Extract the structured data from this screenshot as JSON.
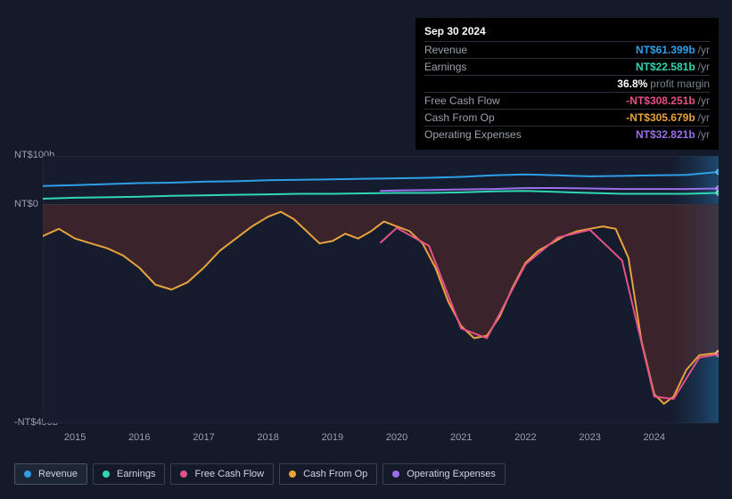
{
  "tooltip": {
    "date": "Sep 30 2024",
    "rows": [
      {
        "label": "Revenue",
        "value": "NT$61.399b",
        "unit": "/yr",
        "color": "#2e9fe6"
      },
      {
        "label": "Earnings",
        "value": "NT$22.581b",
        "unit": "/yr",
        "color": "#31d6b2"
      },
      {
        "label": "",
        "value": "36.8%",
        "unit": "profit margin",
        "color": "#ffffff"
      },
      {
        "label": "Free Cash Flow",
        "value": "-NT$308.251b",
        "unit": "/yr",
        "color": "#e6518a"
      },
      {
        "label": "Cash From Op",
        "value": "-NT$305.679b",
        "unit": "/yr",
        "color": "#e8a33d"
      },
      {
        "label": "Operating Expenses",
        "value": "NT$32.821b",
        "unit": "/yr",
        "color": "#9b6ee8"
      }
    ]
  },
  "chart": {
    "type": "line-area",
    "background_color": "#131a2a",
    "plot_background": "#151c2e",
    "grid_color": "#2a3142",
    "future_band_color": "#1a2540",
    "y_axis": {
      "min": -450,
      "max": 100,
      "zero": 0,
      "ticks": [
        {
          "v": 100,
          "label": "NT$100b"
        },
        {
          "v": 0,
          "label": "NT$0"
        },
        {
          "v": -450,
          "label": "-NT$450b"
        }
      ],
      "label_color": "#9aa0ac",
      "label_fontsize": 11
    },
    "x_axis": {
      "min": 2014.5,
      "max": 2025.0,
      "ticks": [
        2015,
        2016,
        2017,
        2018,
        2019,
        2020,
        2021,
        2022,
        2023,
        2024
      ],
      "label_color": "#9aa0ac",
      "label_fontsize": 11
    },
    "future_start": 2024.3,
    "series": [
      {
        "name": "Revenue",
        "color": "#2e9fe6",
        "line_width": 2,
        "has_fill": false,
        "points": [
          [
            2014.5,
            38
          ],
          [
            2015,
            40
          ],
          [
            2015.5,
            42
          ],
          [
            2016,
            44
          ],
          [
            2016.5,
            45
          ],
          [
            2017,
            47
          ],
          [
            2017.5,
            48
          ],
          [
            2018,
            50
          ],
          [
            2018.5,
            51
          ],
          [
            2019,
            52
          ],
          [
            2019.5,
            53
          ],
          [
            2020,
            54
          ],
          [
            2020.5,
            55
          ],
          [
            2021,
            57
          ],
          [
            2021.5,
            60
          ],
          [
            2022,
            62
          ],
          [
            2022.5,
            60
          ],
          [
            2023,
            58
          ],
          [
            2023.5,
            59
          ],
          [
            2024,
            60
          ],
          [
            2024.5,
            61
          ],
          [
            2025,
            67
          ]
        ]
      },
      {
        "name": "Earnings",
        "color": "#31d6b2",
        "line_width": 2,
        "has_fill": false,
        "points": [
          [
            2014.5,
            12
          ],
          [
            2015,
            14
          ],
          [
            2015.5,
            15
          ],
          [
            2016,
            16
          ],
          [
            2016.5,
            18
          ],
          [
            2017,
            19
          ],
          [
            2017.5,
            20
          ],
          [
            2018,
            21
          ],
          [
            2018.5,
            22
          ],
          [
            2019,
            22
          ],
          [
            2019.5,
            23
          ],
          [
            2020,
            24
          ],
          [
            2020.5,
            24
          ],
          [
            2021,
            25
          ],
          [
            2021.5,
            27
          ],
          [
            2022,
            28
          ],
          [
            2022.5,
            26
          ],
          [
            2023,
            24
          ],
          [
            2023.5,
            22
          ],
          [
            2024,
            22
          ],
          [
            2024.5,
            22
          ],
          [
            2025,
            24
          ]
        ]
      },
      {
        "name": "Operating Expenses",
        "color": "#9b6ee8",
        "line_width": 2,
        "has_fill": false,
        "points": [
          [
            2019.75,
            28
          ],
          [
            2020,
            29
          ],
          [
            2020.5,
            30
          ],
          [
            2021,
            31
          ],
          [
            2021.5,
            32
          ],
          [
            2022,
            34
          ],
          [
            2022.5,
            34
          ],
          [
            2023,
            33
          ],
          [
            2023.5,
            32
          ],
          [
            2024,
            32
          ],
          [
            2024.5,
            32
          ],
          [
            2025,
            33
          ]
        ]
      },
      {
        "name": "Cash From Op",
        "color": "#e8a33d",
        "line_width": 2,
        "has_fill": true,
        "fill_color": "#5a2a2a",
        "fill_opacity": 0.55,
        "points": [
          [
            2014.5,
            -65
          ],
          [
            2014.75,
            -50
          ],
          [
            2015,
            -70
          ],
          [
            2015.25,
            -80
          ],
          [
            2015.5,
            -90
          ],
          [
            2015.75,
            -105
          ],
          [
            2016,
            -130
          ],
          [
            2016.25,
            -165
          ],
          [
            2016.5,
            -175
          ],
          [
            2016.75,
            -160
          ],
          [
            2017,
            -130
          ],
          [
            2017.25,
            -95
          ],
          [
            2017.5,
            -70
          ],
          [
            2017.75,
            -45
          ],
          [
            2018,
            -25
          ],
          [
            2018.2,
            -15
          ],
          [
            2018.4,
            -30
          ],
          [
            2018.6,
            -55
          ],
          [
            2018.8,
            -80
          ],
          [
            2019,
            -75
          ],
          [
            2019.2,
            -60
          ],
          [
            2019.4,
            -70
          ],
          [
            2019.6,
            -55
          ],
          [
            2019.8,
            -35
          ],
          [
            2020,
            -45
          ],
          [
            2020.2,
            -55
          ],
          [
            2020.4,
            -80
          ],
          [
            2020.6,
            -130
          ],
          [
            2020.8,
            -200
          ],
          [
            2021,
            -250
          ],
          [
            2021.2,
            -275
          ],
          [
            2021.4,
            -270
          ],
          [
            2021.6,
            -230
          ],
          [
            2021.8,
            -170
          ],
          [
            2022,
            -120
          ],
          [
            2022.2,
            -95
          ],
          [
            2022.4,
            -80
          ],
          [
            2022.6,
            -65
          ],
          [
            2022.8,
            -55
          ],
          [
            2023,
            -50
          ],
          [
            2023.2,
            -45
          ],
          [
            2023.4,
            -50
          ],
          [
            2023.6,
            -110
          ],
          [
            2023.8,
            -280
          ],
          [
            2024,
            -390
          ],
          [
            2024.15,
            -410
          ],
          [
            2024.3,
            -395
          ],
          [
            2024.5,
            -340
          ],
          [
            2024.7,
            -310
          ],
          [
            2025,
            -305
          ]
        ]
      },
      {
        "name": "Free Cash Flow",
        "color": "#e6518a",
        "line_width": 2,
        "has_fill": false,
        "points": [
          [
            2019.75,
            -78
          ],
          [
            2020,
            -48
          ],
          [
            2020.5,
            -85
          ],
          [
            2021,
            -255
          ],
          [
            2021.4,
            -275
          ],
          [
            2022,
            -123
          ],
          [
            2022.5,
            -68
          ],
          [
            2023,
            -52
          ],
          [
            2023.5,
            -115
          ],
          [
            2024,
            -395
          ],
          [
            2024.3,
            -400
          ],
          [
            2024.7,
            -315
          ],
          [
            2025,
            -308
          ]
        ]
      }
    ]
  },
  "legend": {
    "items": [
      {
        "label": "Revenue",
        "color": "#2e9fe6",
        "active": true
      },
      {
        "label": "Earnings",
        "color": "#31d6b2",
        "active": false
      },
      {
        "label": "Free Cash Flow",
        "color": "#e6518a",
        "active": false
      },
      {
        "label": "Cash From Op",
        "color": "#e8a33d",
        "active": false
      },
      {
        "label": "Operating Expenses",
        "color": "#9b6ee8",
        "active": false
      }
    ]
  }
}
